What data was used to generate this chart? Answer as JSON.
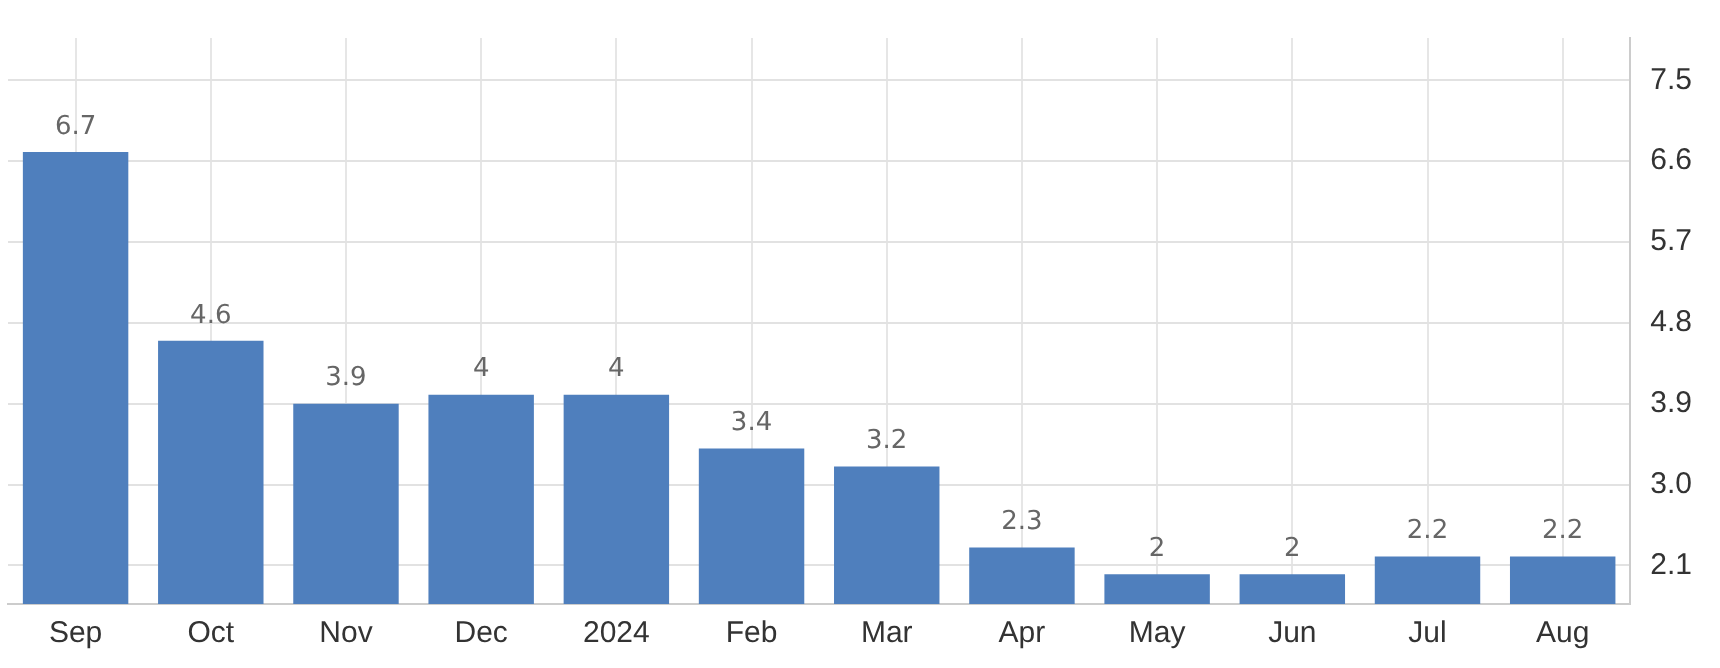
{
  "chart_data": {
    "type": "bar",
    "categories": [
      "Sep",
      "Oct",
      "Nov",
      "Dec",
      "2024",
      "Feb",
      "Mar",
      "Apr",
      "May",
      "Jun",
      "Jul",
      "Aug"
    ],
    "values": [
      6.7,
      4.6,
      3.9,
      4,
      4,
      3.4,
      3.2,
      2.3,
      2,
      2,
      2.2,
      2.2
    ],
    "color": "#4f7fbd",
    "ylim": [
      1.67,
      7.97
    ],
    "yticks": [
      {
        "value": 2.1,
        "label": "2.1"
      },
      {
        "value": 3.0,
        "label": "3.0"
      },
      {
        "value": 3.9,
        "label": "3.9"
      },
      {
        "value": 4.8,
        "label": "4.8"
      },
      {
        "value": 5.7,
        "label": "5.7"
      },
      {
        "value": 6.6,
        "label": "6.6"
      },
      {
        "value": 7.5,
        "label": "7.5"
      }
    ],
    "grid": true,
    "data_labels": true,
    "legend": false
  }
}
